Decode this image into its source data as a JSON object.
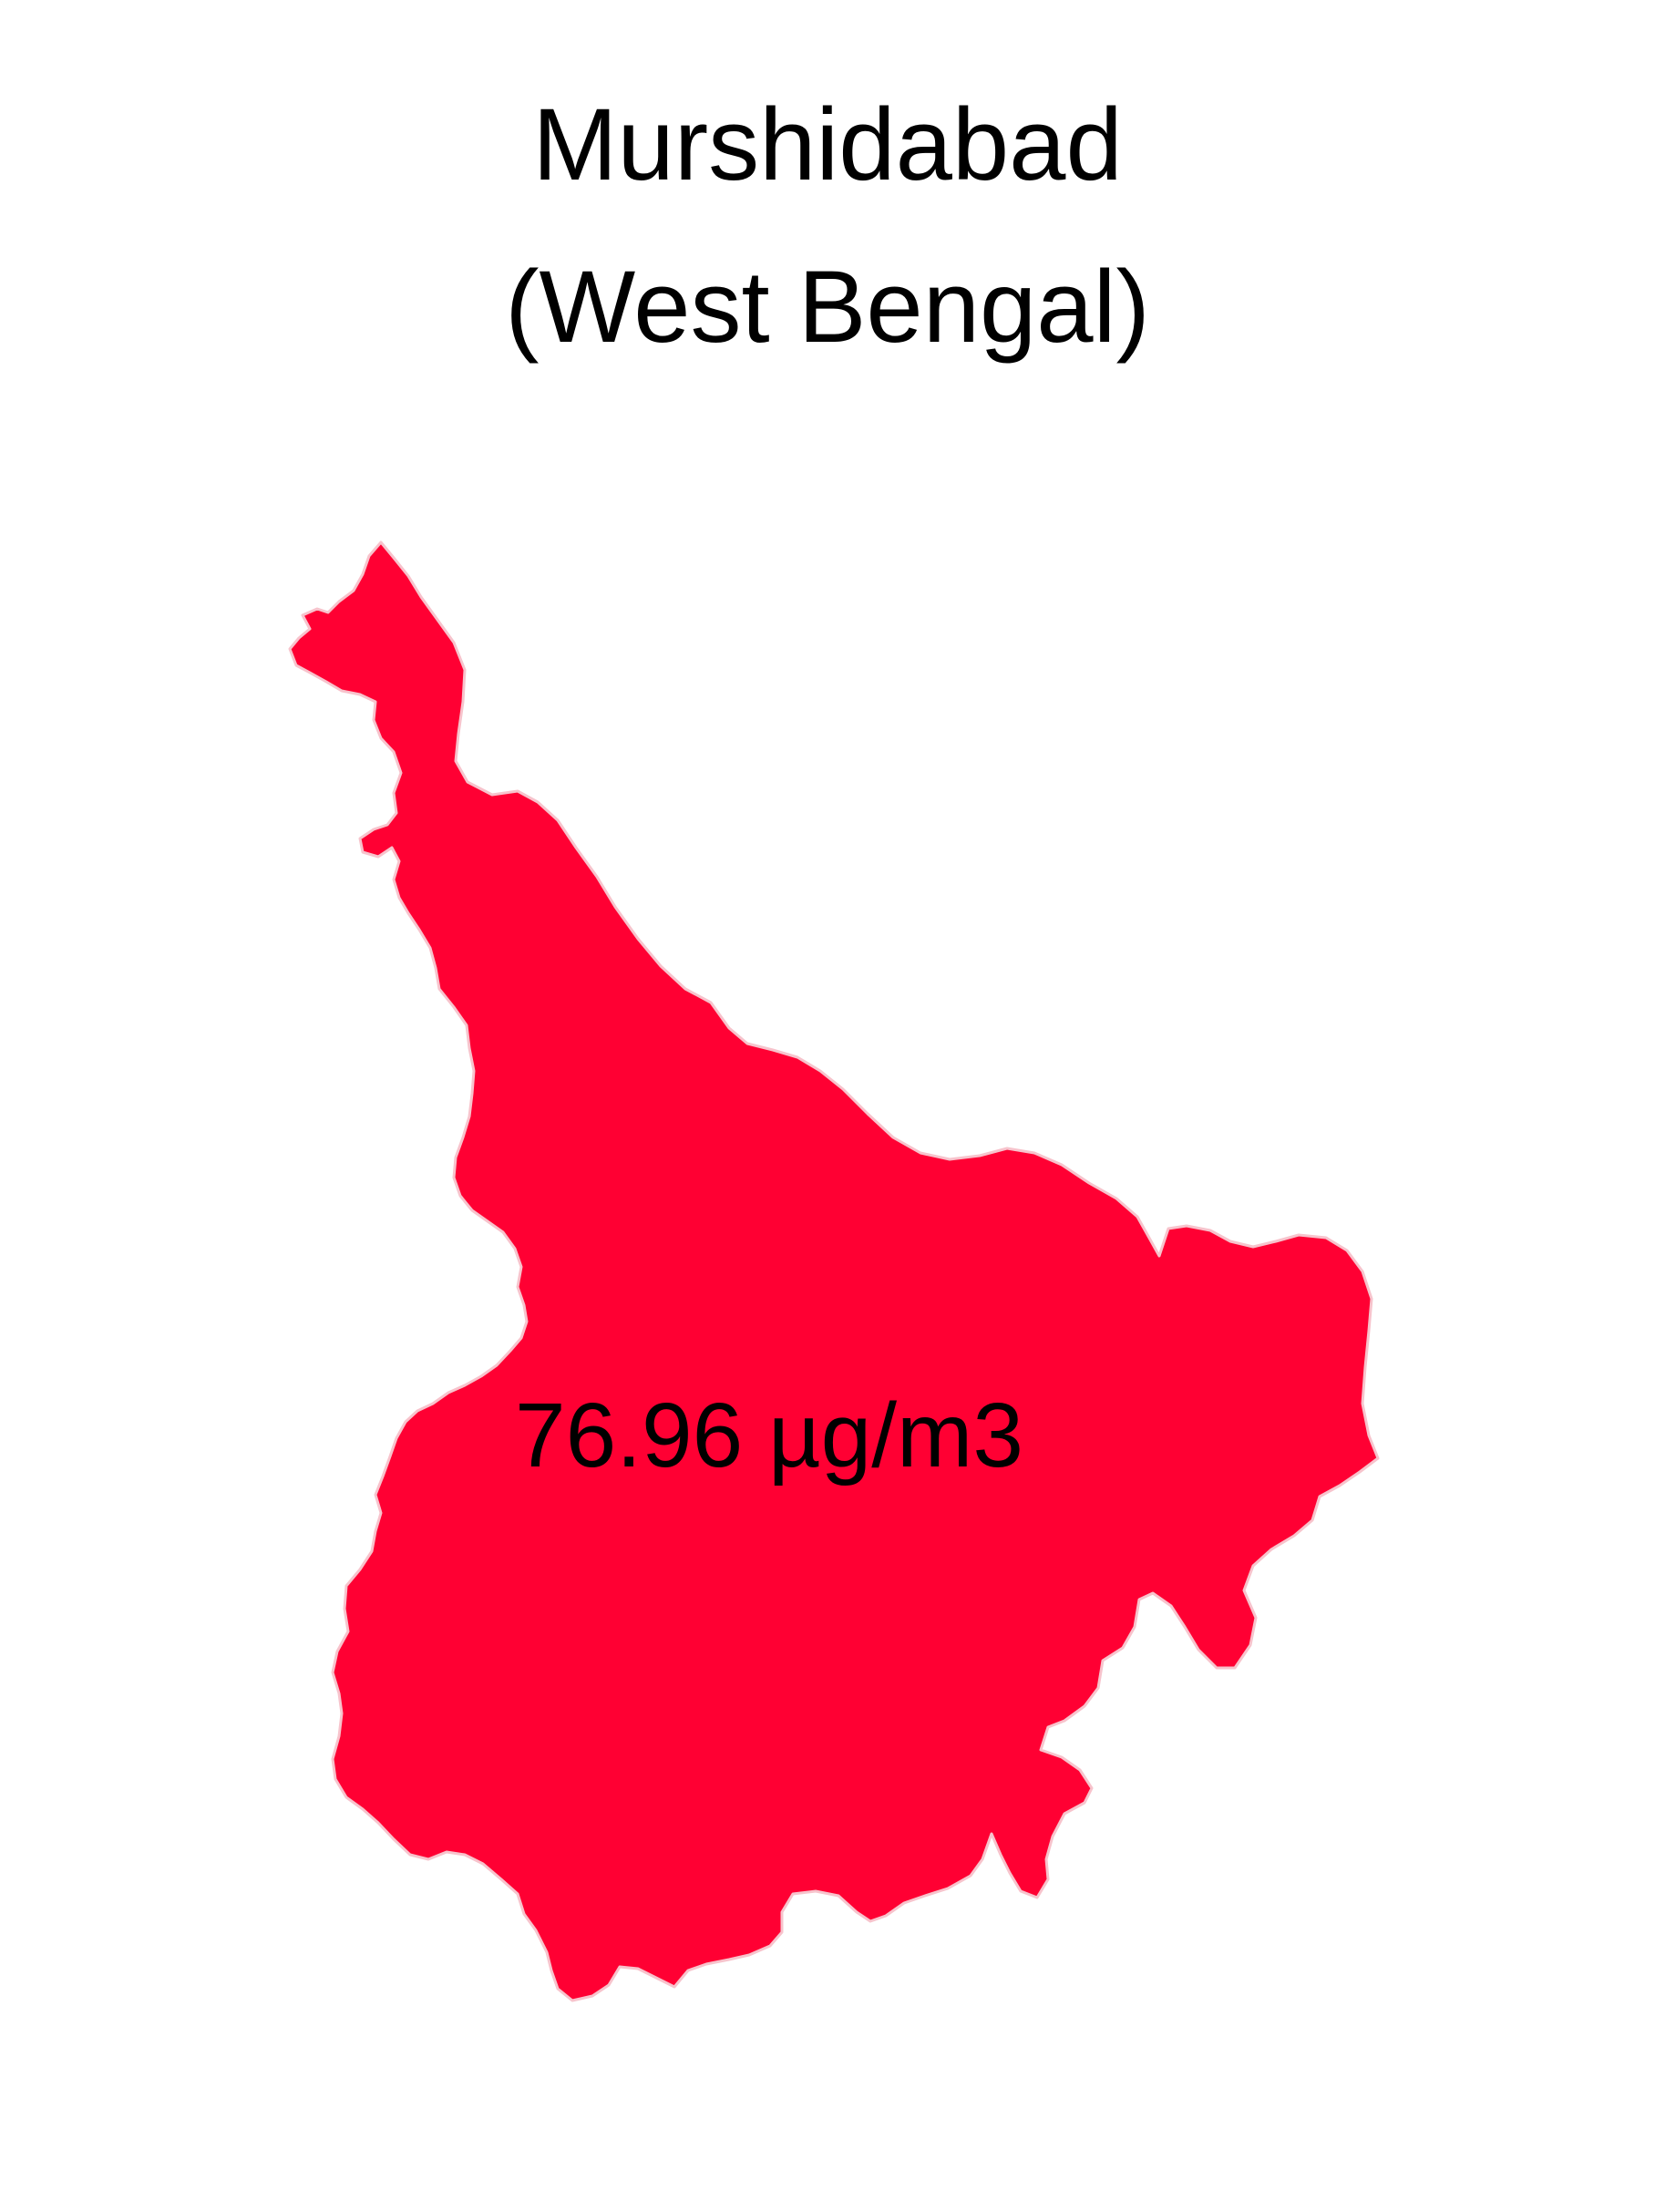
{
  "map": {
    "district_name": "Murshidabad",
    "state_line": "(West Bengal)",
    "value_label": "76.96 µg/m3",
    "fill_color": "#ff0033",
    "outline_color": "#f7c3cc"
  }
}
